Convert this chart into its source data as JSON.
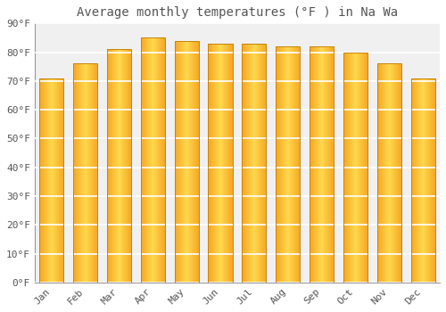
{
  "title": "Average monthly temperatures (°F ) in Na Wa",
  "months": [
    "Jan",
    "Feb",
    "Mar",
    "Apr",
    "May",
    "Jun",
    "Jul",
    "Aug",
    "Sep",
    "Oct",
    "Nov",
    "Dec"
  ],
  "values": [
    71,
    76,
    81,
    85,
    84,
    83,
    83,
    82,
    82,
    80,
    76,
    71
  ],
  "bar_color_outer": "#F5A623",
  "bar_color_inner": "#FFD84D",
  "bar_edge_color": "#C8840A",
  "background_color": "#FFFFFF",
  "plot_bg_color": "#F0F0F0",
  "grid_color": "#FFFFFF",
  "text_color": "#555555",
  "ylim": [
    0,
    90
  ],
  "yticks": [
    0,
    10,
    20,
    30,
    40,
    50,
    60,
    70,
    80,
    90
  ],
  "title_fontsize": 10,
  "tick_fontsize": 8,
  "tick_font": "monospace"
}
